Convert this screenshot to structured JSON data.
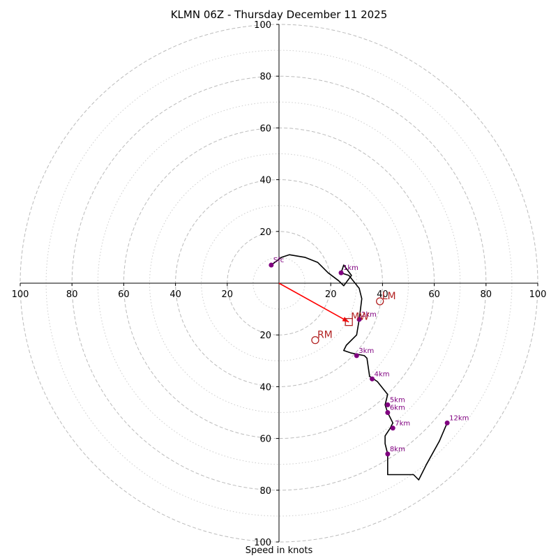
{
  "chart_data": {
    "type": "hodograph",
    "title": "KLMN 06Z - Thursday December 11 2025",
    "xlabel": "Speed in knots",
    "xlim": [
      -100,
      100
    ],
    "ylim": [
      -100,
      100
    ],
    "tick_values": [
      20,
      40,
      60,
      80,
      100
    ],
    "ring_major": [
      20,
      40,
      60,
      80,
      100
    ],
    "ring_minor": [
      10,
      30,
      50,
      70,
      90
    ],
    "colors": {
      "trace": "#000000",
      "height_marker": "#800080",
      "motion": "#b22222",
      "mean_wind_arrow": "#ff0000",
      "grid": "#bbbbbb"
    },
    "trace": [
      [
        -3,
        7
      ],
      [
        1,
        10
      ],
      [
        4,
        11
      ],
      [
        10,
        10
      ],
      [
        15,
        8
      ],
      [
        19,
        4
      ],
      [
        23,
        1
      ],
      [
        25,
        -1
      ],
      [
        28,
        3
      ],
      [
        25,
        7
      ],
      [
        24,
        4
      ],
      [
        27,
        3
      ],
      [
        31,
        -2
      ],
      [
        32,
        -6
      ],
      [
        31,
        -14
      ],
      [
        30,
        -20
      ],
      [
        26,
        -24
      ],
      [
        25,
        -26
      ],
      [
        28,
        -27
      ],
      [
        33,
        -28
      ],
      [
        34,
        -29
      ],
      [
        35,
        -36
      ],
      [
        38,
        -38
      ],
      [
        42,
        -43
      ],
      [
        41,
        -47
      ],
      [
        42,
        -50
      ],
      [
        44,
        -54
      ],
      [
        43,
        -56
      ],
      [
        41,
        -59
      ],
      [
        41,
        -62
      ],
      [
        42,
        -66
      ],
      [
        42,
        -71
      ],
      [
        42,
        -74
      ],
      [
        52,
        -74
      ],
      [
        54,
        -76
      ],
      [
        57,
        -70
      ],
      [
        62,
        -61
      ],
      [
        65,
        -54
      ]
    ],
    "height_markers": [
      {
        "label": "Sfc",
        "u": -3,
        "v": 7
      },
      {
        "label": "1km",
        "u": 24,
        "v": 4
      },
      {
        "label": "2km",
        "u": 31,
        "v": -14
      },
      {
        "label": "3km",
        "u": 30,
        "v": -28
      },
      {
        "label": "4km",
        "u": 36,
        "v": -37
      },
      {
        "label": "5km",
        "u": 42,
        "v": -47
      },
      {
        "label": "6km",
        "u": 42,
        "v": -50
      },
      {
        "label": "7km",
        "u": 44,
        "v": -56
      },
      {
        "label": "8km",
        "u": 42,
        "v": -66
      },
      {
        "label": "12km",
        "u": 65,
        "v": -54
      }
    ],
    "storm_motion": [
      {
        "label": "LM",
        "u": 39,
        "v": -7,
        "marker": "circle"
      },
      {
        "label": "RM",
        "u": 14,
        "v": -22,
        "marker": "circle"
      },
      {
        "label": "MW",
        "u": 27,
        "v": -15,
        "marker": "square"
      }
    ],
    "mean_wind_arrow": {
      "from": [
        0,
        0
      ],
      "to": [
        27,
        -15
      ]
    }
  }
}
